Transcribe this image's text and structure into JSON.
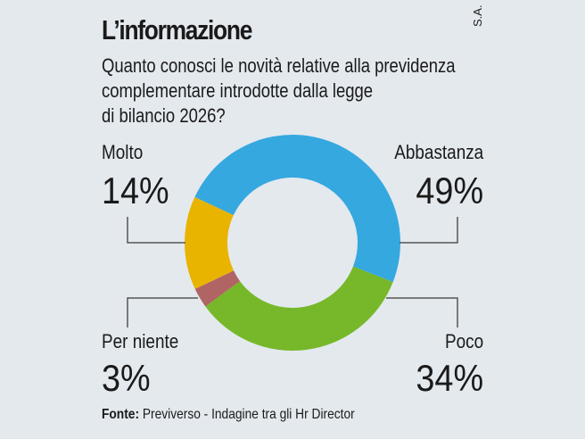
{
  "chart_data": {
    "type": "pie",
    "donut": true,
    "title": "L’informazione",
    "subtitle": "Quanto conosci le novità relative alla previdenza complementare introdotte dalla legge di bilancio 2026?",
    "credit": "S.A.",
    "slices": [
      {
        "label": "Abbastanza",
        "value": 49,
        "display": "49%",
        "color": "#35a8e0"
      },
      {
        "label": "Poco",
        "value": 34,
        "display": "34%",
        "color": "#76b82a"
      },
      {
        "label": "Per niente",
        "value": 3,
        "display": "3%",
        "color": "#b06464"
      },
      {
        "label": "Molto",
        "value": 14,
        "display": "14%",
        "color": "#e8b400"
      }
    ],
    "source_label": "Fonte:",
    "source_text": " Previverso - Indagine tra gli Hr Director"
  },
  "colors": {
    "background": "#e4e9ee",
    "leader_line": "#555555"
  }
}
